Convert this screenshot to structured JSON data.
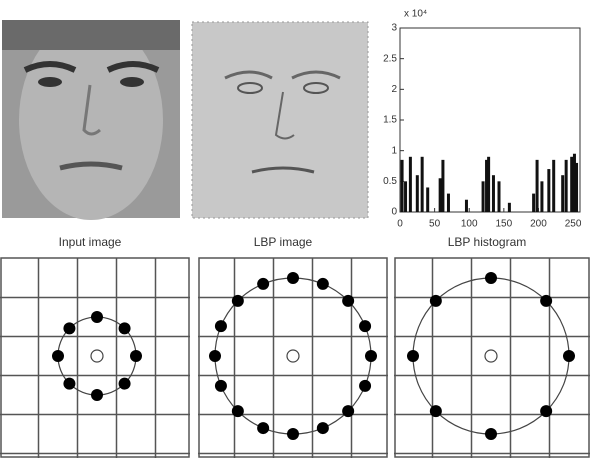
{
  "captions": [
    "Input image",
    "LBP image",
    "LBP histogram"
  ],
  "chart_data": {
    "type": "bar",
    "y_multiplier": "x 10⁴",
    "x": [
      3,
      8,
      15,
      25,
      32,
      40,
      58,
      62,
      70,
      96,
      120,
      125,
      128,
      135,
      143,
      158,
      193,
      198,
      205,
      215,
      222,
      235,
      240,
      248,
      252,
      255
    ],
    "values": [
      0.85,
      0.5,
      0.9,
      0.6,
      0.9,
      0.4,
      0.55,
      0.85,
      0.3,
      0.2,
      0.5,
      0.85,
      0.9,
      0.6,
      0.5,
      0.15,
      0.3,
      0.85,
      0.5,
      0.7,
      0.85,
      0.6,
      0.85,
      0.9,
      0.95,
      0.8
    ],
    "color": "#111111",
    "xlim": [
      0,
      260
    ],
    "xticks": [
      0,
      50,
      100,
      150,
      200,
      250
    ],
    "ylim": [
      0,
      3
    ],
    "yticks": [
      0,
      0.5,
      1,
      1.5,
      2,
      2.5,
      3
    ]
  }
}
